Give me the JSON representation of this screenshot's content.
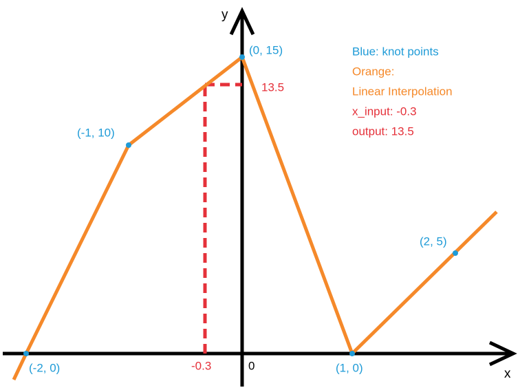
{
  "axes": {
    "y_label": "y",
    "x_label": "x",
    "origin": "0"
  },
  "knots": [
    {
      "label": "(-2, 0)"
    },
    {
      "label": "(-1, 10)"
    },
    {
      "label": "(0, 15)"
    },
    {
      "label": "(1, 0)"
    },
    {
      "label": "(2, 5)"
    }
  ],
  "query": {
    "x_label": "-0.3",
    "y_label": "13.5"
  },
  "legend": [
    "Blue: knot points",
    "Orange:",
    "Linear Interpolation",
    "x_input: -0.3",
    "output: 13.5"
  ]
}
